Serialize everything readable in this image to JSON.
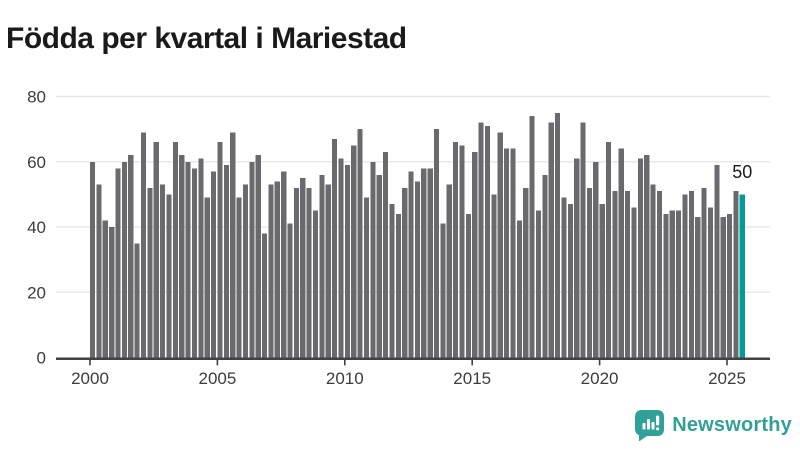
{
  "title": "Födda per kvartal i Mariestad",
  "annotation": {
    "label": "50"
  },
  "branding": {
    "name": "Newsworthy",
    "icon": "newsworthy-chart-bubble-icon"
  },
  "colors": {
    "bar": "#6a6a6e",
    "highlight": "#009c99",
    "brand": "#31a099",
    "grid": "#e8e8e8",
    "axis": "#414141",
    "tick_text": "#3c3c3c",
    "title_text": "#1a1a1a",
    "annotation_text": "#1a1a1a"
  },
  "chart_data": {
    "type": "bar",
    "title": "Födda per kvartal i Mariestad",
    "x_start": "2000 Q1",
    "x_end": "2025 Q3",
    "x_step": "quarter",
    "values": [
      60,
      53,
      42,
      40,
      58,
      60,
      62,
      35,
      69,
      52,
      66,
      53,
      50,
      66,
      62,
      60,
      58,
      61,
      49,
      57,
      66,
      59,
      69,
      49,
      53,
      60,
      62,
      38,
      53,
      54,
      57,
      41,
      52,
      55,
      52,
      45,
      56,
      53,
      67,
      61,
      59,
      65,
      70,
      49,
      60,
      56,
      63,
      47,
      44,
      52,
      57,
      54,
      58,
      58,
      70,
      41,
      53,
      66,
      65,
      44,
      63,
      72,
      71,
      50,
      69,
      64,
      64,
      42,
      52,
      74,
      45,
      56,
      72,
      75,
      49,
      47,
      61,
      72,
      52,
      60,
      47,
      66,
      51,
      64,
      51,
      46,
      61,
      62,
      53,
      51,
      44,
      45,
      45,
      50,
      51,
      43,
      52,
      46,
      59,
      43,
      44,
      51,
      50
    ],
    "highlight_index": 102,
    "highlight_label": "50",
    "xticks": [
      "2000",
      "2005",
      "2010",
      "2015",
      "2020",
      "2025"
    ],
    "yticks": [
      0,
      20,
      40,
      60,
      80
    ],
    "ylim": [
      0,
      80
    ],
    "grid": "horizontal",
    "legend": "none"
  }
}
